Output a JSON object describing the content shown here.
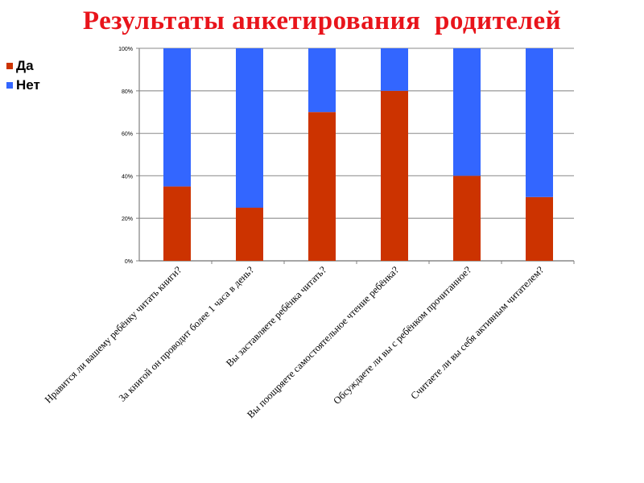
{
  "title": "Результаты анкетирования  родителей",
  "colors": {
    "title": "#e8141b",
    "da": "#cc3300",
    "net": "#3366ff",
    "grid": "#a0a0a0"
  },
  "chart_data": {
    "type": "bar",
    "stacked": true,
    "normalized": true,
    "title": "",
    "ylim": [
      0,
      100
    ],
    "y_ticks": [
      "0%",
      "20%",
      "40%",
      "60%",
      "80%",
      "100%"
    ],
    "legend_position": "top-left",
    "grid": true,
    "categories": [
      "Нравится ли вашему ребёнку читать книги?",
      "За книгой он проводит более 1 часа в день?",
      "Вы заставляете ребёнка читать?",
      "Вы поощряете самостоятельное чтение ребёнка?",
      "Обсуждаете ли вы с ребёнком прочитанное?",
      "Считаете ли вы себя активным читателем?"
    ],
    "series": [
      {
        "name": "Да",
        "values": [
          35,
          25,
          70,
          80,
          40,
          30
        ]
      },
      {
        "name": "Нет",
        "values": [
          65,
          75,
          30,
          20,
          60,
          70
        ]
      }
    ]
  }
}
